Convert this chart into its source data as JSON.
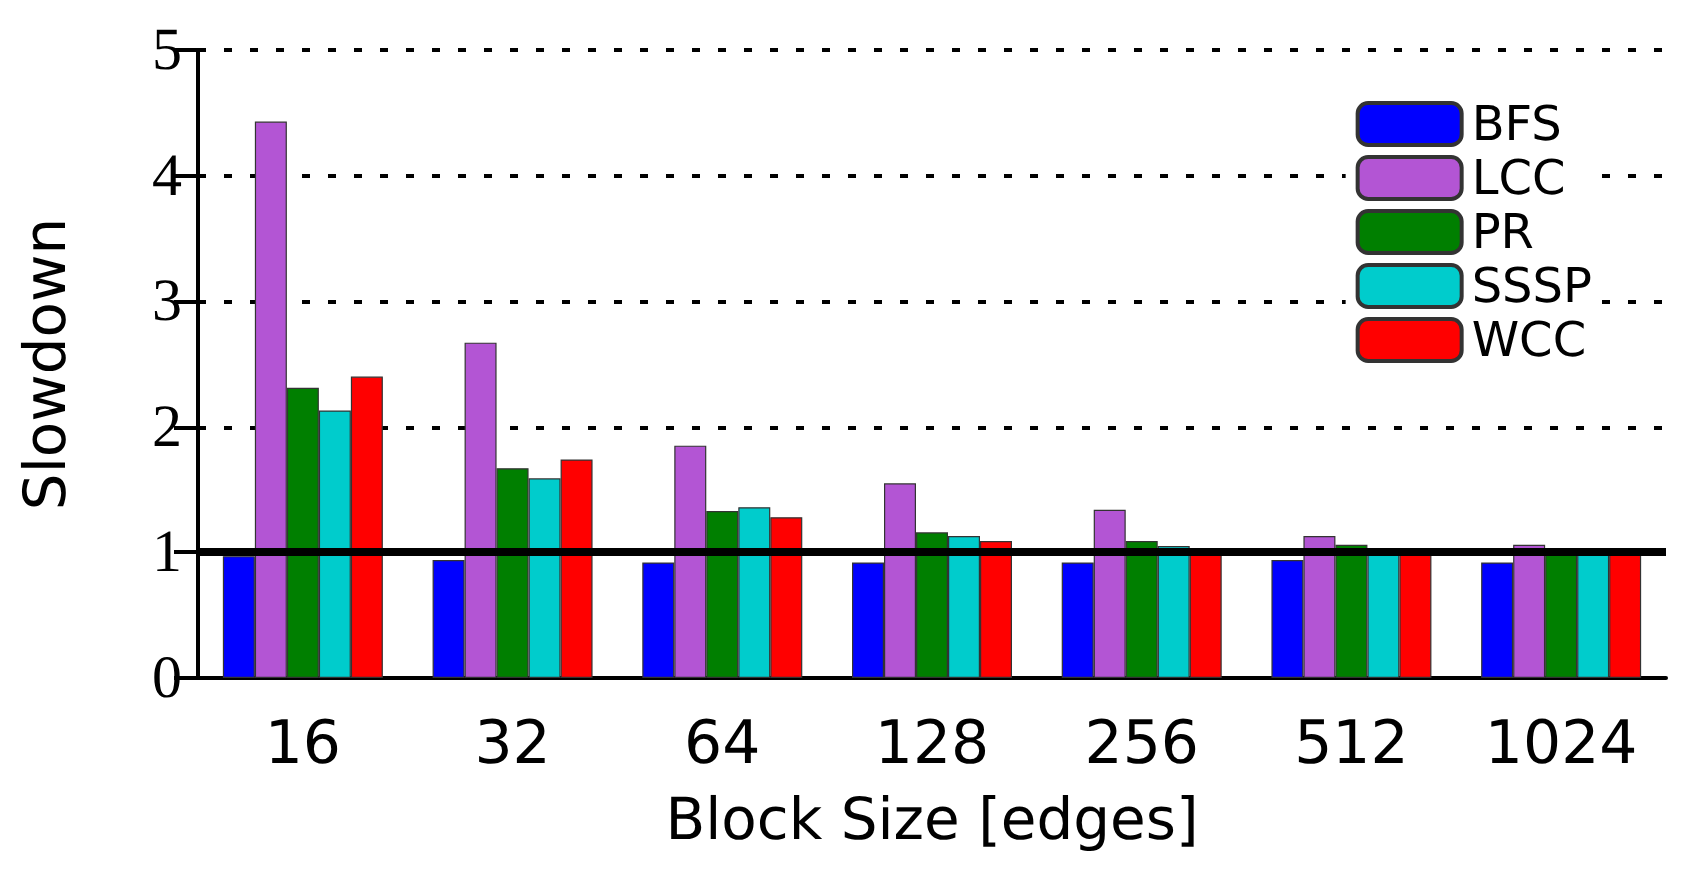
{
  "chart_data": {
    "type": "bar",
    "xlabel": "Block Size [edges]",
    "ylabel": "Slowdown",
    "categories": [
      "16",
      "32",
      "64",
      "128",
      "256",
      "512",
      "1024"
    ],
    "series": [
      {
        "name": "BFS",
        "color": "#0000ff",
        "values": [
          0.97,
          0.94,
          0.92,
          0.92,
          0.92,
          0.94,
          0.92
        ]
      },
      {
        "name": "LCC",
        "color": "#b355d4",
        "values": [
          4.43,
          2.67,
          1.85,
          1.55,
          1.34,
          1.13,
          1.06
        ]
      },
      {
        "name": "PR",
        "color": "#007f00",
        "values": [
          2.31,
          1.67,
          1.33,
          1.16,
          1.09,
          1.06,
          1.0
        ]
      },
      {
        "name": "SSSP",
        "color": "#00cccc",
        "values": [
          2.13,
          1.59,
          1.36,
          1.13,
          1.05,
          1.0,
          1.0
        ]
      },
      {
        "name": "WCC",
        "color": "#ff0000",
        "values": [
          2.4,
          1.74,
          1.28,
          1.09,
          1.0,
          1.0,
          1.0
        ]
      }
    ],
    "ylim": [
      0,
      5
    ],
    "yticks": [
      0,
      1,
      2,
      3,
      4,
      5
    ],
    "grid": "y",
    "legend": "top right",
    "ref_lines": [
      {
        "axis": "y",
        "value": 1,
        "color": "#000000"
      }
    ]
  }
}
